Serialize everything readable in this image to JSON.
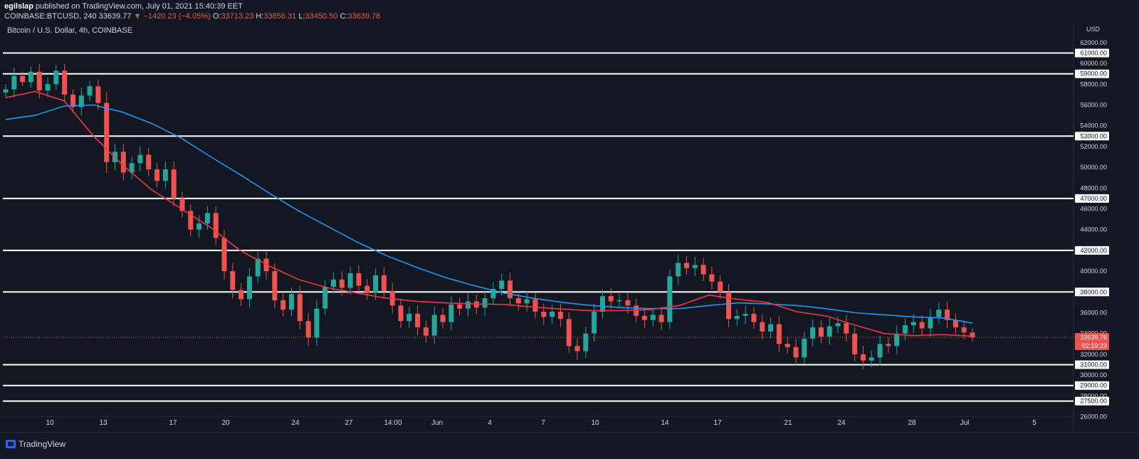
{
  "header": {
    "author": "egilslap",
    "published_text": "published on TradingView.com, July 01, 2021 15:40:39 EET",
    "symbol": "COINBASE:BTCUSD, 240",
    "last": "33639.77",
    "arrow": "▼",
    "change": "−1420.23 (−4.05%)",
    "o_label": "O:",
    "o_val": "33713.23",
    "h_label": "H:",
    "h_val": "33856.31",
    "l_label": "L:",
    "l_val": "33450.50",
    "c_label": "C:",
    "c_val": "33639.76"
  },
  "chart_title": "Bitcoin / U.S. Dollar, 4h, COINBASE",
  "footer": {
    "brand": "TradingView"
  },
  "colors": {
    "background": "#131722",
    "up": "#26a69a",
    "down": "#ef5350",
    "ma_fast": "#f23645",
    "ma_slow": "#2196f3",
    "levels": "#ffffff",
    "price_tag": "#ef5350"
  },
  "chart_data": {
    "type": "candlestick",
    "y_unit": "USD",
    "ylim": [
      25000,
      63000
    ],
    "price_axis_labels": [
      62000,
      60000,
      58000,
      56000,
      54000,
      52000,
      50000,
      48000,
      46000,
      44000,
      42000,
      40000,
      38000,
      36000,
      34000,
      32000,
      30000,
      28000,
      26000
    ],
    "time_axis_labels": [
      "10",
      "13",
      "17",
      "20",
      "24",
      "27",
      "14:00",
      "Jun",
      "4",
      "7",
      "10",
      "14",
      "17",
      "21",
      "24",
      "28",
      "Jul",
      "5"
    ],
    "horizontal_levels": [
      61000,
      59000,
      53000,
      47000,
      42000,
      38000,
      31000,
      29000,
      27500
    ],
    "current_price": {
      "value": "33639.76",
      "countdown": "02:19:23"
    },
    "price_path": [
      [
        57500,
        4
      ],
      [
        58800,
        6
      ],
      [
        58200,
        3
      ],
      [
        59200,
        4
      ],
      [
        57400,
        6
      ],
      [
        58000,
        5
      ],
      [
        59300,
        4
      ],
      [
        57000,
        5
      ],
      [
        55800,
        4
      ],
      [
        56900,
        6
      ],
      [
        57800,
        4
      ],
      [
        56200,
        5
      ],
      [
        50500,
        8
      ],
      [
        51500,
        6
      ],
      [
        49500,
        6
      ],
      [
        50400,
        5
      ],
      [
        51200,
        6
      ],
      [
        49800,
        5
      ],
      [
        48700,
        5
      ],
      [
        49800,
        6
      ],
      [
        47000,
        6
      ],
      [
        45800,
        5
      ],
      [
        44000,
        5
      ],
      [
        44600,
        6
      ],
      [
        45600,
        5
      ],
      [
        43200,
        5
      ],
      [
        40000,
        6
      ],
      [
        38200,
        6
      ],
      [
        37300,
        5
      ],
      [
        39500,
        6
      ],
      [
        41200,
        5
      ],
      [
        40000,
        6
      ],
      [
        37200,
        6
      ],
      [
        36300,
        5
      ],
      [
        37800,
        5
      ],
      [
        35200,
        6
      ],
      [
        33600,
        6
      ],
      [
        36400,
        6
      ],
      [
        38500,
        5
      ],
      [
        39200,
        5
      ],
      [
        38400,
        6
      ],
      [
        39800,
        5
      ],
      [
        38600,
        6
      ],
      [
        37900,
        5
      ],
      [
        39600,
        5
      ],
      [
        38100,
        6
      ],
      [
        36700,
        6
      ],
      [
        35200,
        5
      ],
      [
        35900,
        5
      ],
      [
        34600,
        6
      ],
      [
        33800,
        5
      ],
      [
        35800,
        6
      ],
      [
        35100,
        5
      ],
      [
        36800,
        6
      ],
      [
        36400,
        5
      ],
      [
        37100,
        6
      ],
      [
        36500,
        5
      ],
      [
        37400,
        6
      ],
      [
        38300,
        5
      ],
      [
        39100,
        5
      ],
      [
        37400,
        6
      ],
      [
        36900,
        5
      ],
      [
        37300,
        6
      ],
      [
        36100,
        5
      ],
      [
        35600,
        6
      ],
      [
        36100,
        5
      ],
      [
        35400,
        6
      ],
      [
        32800,
        5
      ],
      [
        32300,
        6
      ],
      [
        34000,
        5
      ],
      [
        36100,
        6
      ],
      [
        37600,
        5
      ],
      [
        37100,
        6
      ],
      [
        37200,
        5
      ],
      [
        36700,
        6
      ],
      [
        35700,
        5
      ],
      [
        35300,
        6
      ],
      [
        35800,
        5
      ],
      [
        35100,
        6
      ],
      [
        39500,
        5
      ],
      [
        40800,
        6
      ],
      [
        40300,
        5
      ],
      [
        40600,
        6
      ],
      [
        39700,
        5
      ],
      [
        39000,
        6
      ],
      [
        38000,
        5
      ],
      [
        35400,
        6
      ],
      [
        35700,
        5
      ],
      [
        35900,
        6
      ],
      [
        35100,
        5
      ],
      [
        34200,
        6
      ],
      [
        34900,
        5
      ],
      [
        33000,
        6
      ],
      [
        32700,
        5
      ],
      [
        31700,
        6
      ],
      [
        33500,
        5
      ],
      [
        34600,
        6
      ],
      [
        33700,
        5
      ],
      [
        34700,
        6
      ],
      [
        35000,
        5
      ],
      [
        34000,
        6
      ],
      [
        32000,
        5
      ],
      [
        31400,
        6
      ],
      [
        31700,
        5
      ],
      [
        33000,
        6
      ],
      [
        32800,
        5
      ],
      [
        34000,
        6
      ],
      [
        34800,
        5
      ],
      [
        35100,
        6
      ],
      [
        34500,
        5
      ],
      [
        35600,
        6
      ],
      [
        36300,
        5
      ],
      [
        35300,
        6
      ],
      [
        34600,
        5
      ],
      [
        34100,
        5
      ],
      [
        33640,
        3
      ]
    ],
    "ma_fast": [
      56700,
      57300,
      56400,
      53000,
      50200,
      47800,
      46000,
      44200,
      42000,
      40500,
      39200,
      38400,
      37900,
      37400,
      37100,
      36950,
      36850,
      36800,
      36550,
      36350,
      36200,
      36200,
      36300,
      36700,
      37700,
      37300,
      37000,
      36100,
      35700,
      34800,
      34000,
      33800,
      33900,
      33750
    ],
    "ma_slow": [
      54600,
      55000,
      55900,
      56000,
      55300,
      54200,
      52800,
      51000,
      49300,
      47500,
      45800,
      44300,
      42800,
      41500,
      40400,
      39400,
      38600,
      37900,
      37400,
      37000,
      36700,
      36500,
      36400,
      36400,
      36700,
      36950,
      36850,
      36700,
      36400,
      36000,
      35800,
      35600,
      35500,
      35000
    ]
  }
}
